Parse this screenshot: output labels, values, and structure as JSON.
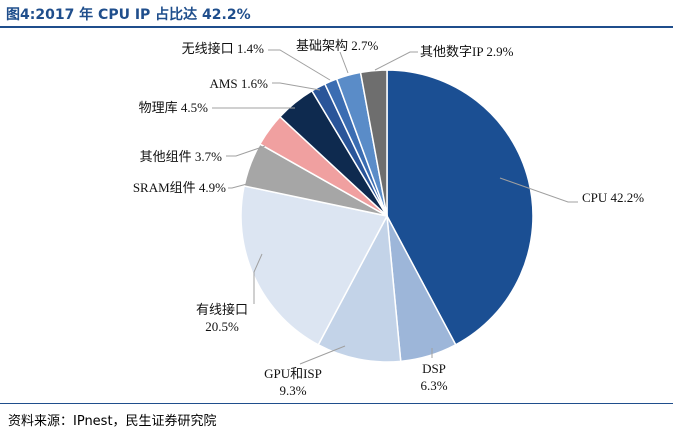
{
  "title": "图4:2017 年 CPU IP 占比达 42.2%",
  "source": "资料来源：IPnest，民生证券研究院",
  "chart_data": {
    "type": "pie",
    "title": "图4:2017 年 CPU IP 占比达 42.2%",
    "slices": [
      {
        "name": "CPU",
        "value": 42.2,
        "label_name": "CPU",
        "label_value": "42.2%",
        "color": "#1b4f93"
      },
      {
        "name": "DSP",
        "value": 6.3,
        "label_name": "DSP",
        "label_value": "6.3%",
        "color": "#9db6d9"
      },
      {
        "name": "GPU和ISP",
        "value": 9.3,
        "label_name": "GPU和ISP",
        "label_value": "9.3%",
        "color": "#c3d3e8"
      },
      {
        "name": "有线接口",
        "value": 20.5,
        "label_name": "有线接口",
        "label_value": "20.5%",
        "color": "#dce5f2"
      },
      {
        "name": "SRAM组件",
        "value": 4.9,
        "label_name": "SRAM组件",
        "label_value": "4.9%",
        "color": "#a6a6a6"
      },
      {
        "name": "其他组件",
        "value": 3.7,
        "label_name": "其他组件",
        "label_value": "3.7%",
        "color": "#f0a0a0"
      },
      {
        "name": "物理库",
        "value": 4.5,
        "label_name": "物理库",
        "label_value": "4.5%",
        "color": "#0e2a4f"
      },
      {
        "name": "AMS",
        "value": 1.6,
        "label_name": "AMS",
        "label_value": "1.6%",
        "color": "#2a5599"
      },
      {
        "name": "无线接口",
        "value": 1.4,
        "label_name": "无线接口",
        "label_value": "1.4%",
        "color": "#3b6db2"
      },
      {
        "name": "基础架构",
        "value": 2.7,
        "label_name": "基础架构",
        "label_value": "2.7%",
        "color": "#5a8cc8"
      },
      {
        "name": "其他数字IP",
        "value": 2.9,
        "label_name": "其他数字IP",
        "label_value": "2.9%",
        "color": "#6e6e6e"
      }
    ]
  }
}
